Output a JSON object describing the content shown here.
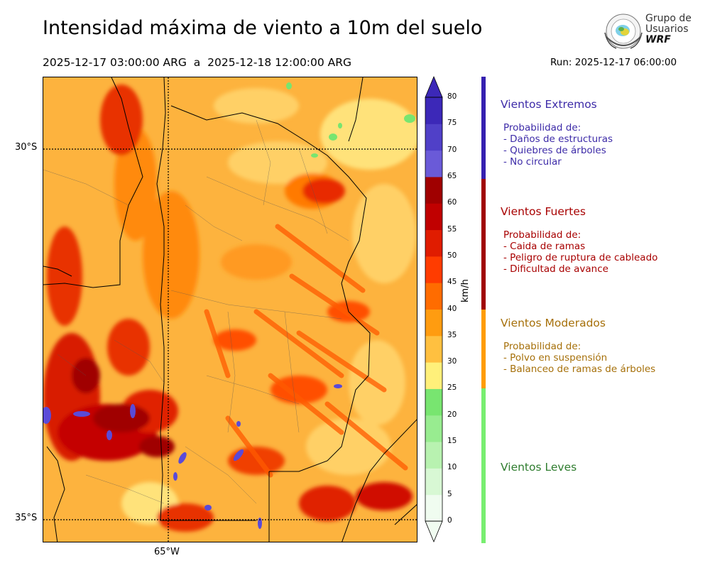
{
  "header": {
    "title": "Intensidad máxima de viento a 10m del suelo",
    "period": "2025-12-17 03:00:00 ARG  a  2025-12-18 12:00:00 ARG",
    "run": "Run: 2025-12-17 06:00:00"
  },
  "logo": {
    "line1": "Grupo de",
    "line2": "Usuarios",
    "line3": "WRF"
  },
  "map": {
    "lat_labels": [
      "30°S",
      "35°S"
    ],
    "lon_labels": [
      "65°W"
    ],
    "colors": {
      "background": "#fdb33e",
      "border": "#000000"
    }
  },
  "colorbar": {
    "unit": "km/h",
    "ticks": [
      "0",
      "5",
      "10",
      "15",
      "20",
      "25",
      "30",
      "35",
      "40",
      "45",
      "50",
      "55",
      "60",
      "65",
      "70",
      "75",
      "80"
    ],
    "colors": [
      "#f0fcf0",
      "#d8f8d4",
      "#b8f2b0",
      "#98ec90",
      "#78e570",
      "#fff07a",
      "#ffc040",
      "#ff9c10",
      "#ff6c00",
      "#ff3c00",
      "#e01c00",
      "#c00000",
      "#a00000",
      "#6a5ad8",
      "#5040c8",
      "#3c28b8"
    ]
  },
  "categories": [
    {
      "title": "Vientos Extremos",
      "color": "#3d2ba8",
      "band_color": "#3520b0",
      "lines": [
        "Probabilidad de:",
        "- Daños de estructuras",
        "- Quiebres de árboles",
        "- No circular"
      ]
    },
    {
      "title": "Vientos Fuertes",
      "color": "#a80000",
      "band_color": "#a00000",
      "lines": [
        "Probabilidad de:",
        "- Caida de ramas",
        "- Peligro de ruptura de cableado",
        "- Dificultad de avance"
      ]
    },
    {
      "title": "Vientos Moderados",
      "color": "#a6700a",
      "band_color": "#ff9c00",
      "lines": [
        "Probabilidad de:",
        "- Polvo en suspensión",
        "- Balanceo de ramas de árboles"
      ]
    },
    {
      "title": "Vientos Leves",
      "color": "#2f7d2f",
      "band_color": "#78ee70",
      "lines": []
    }
  ]
}
